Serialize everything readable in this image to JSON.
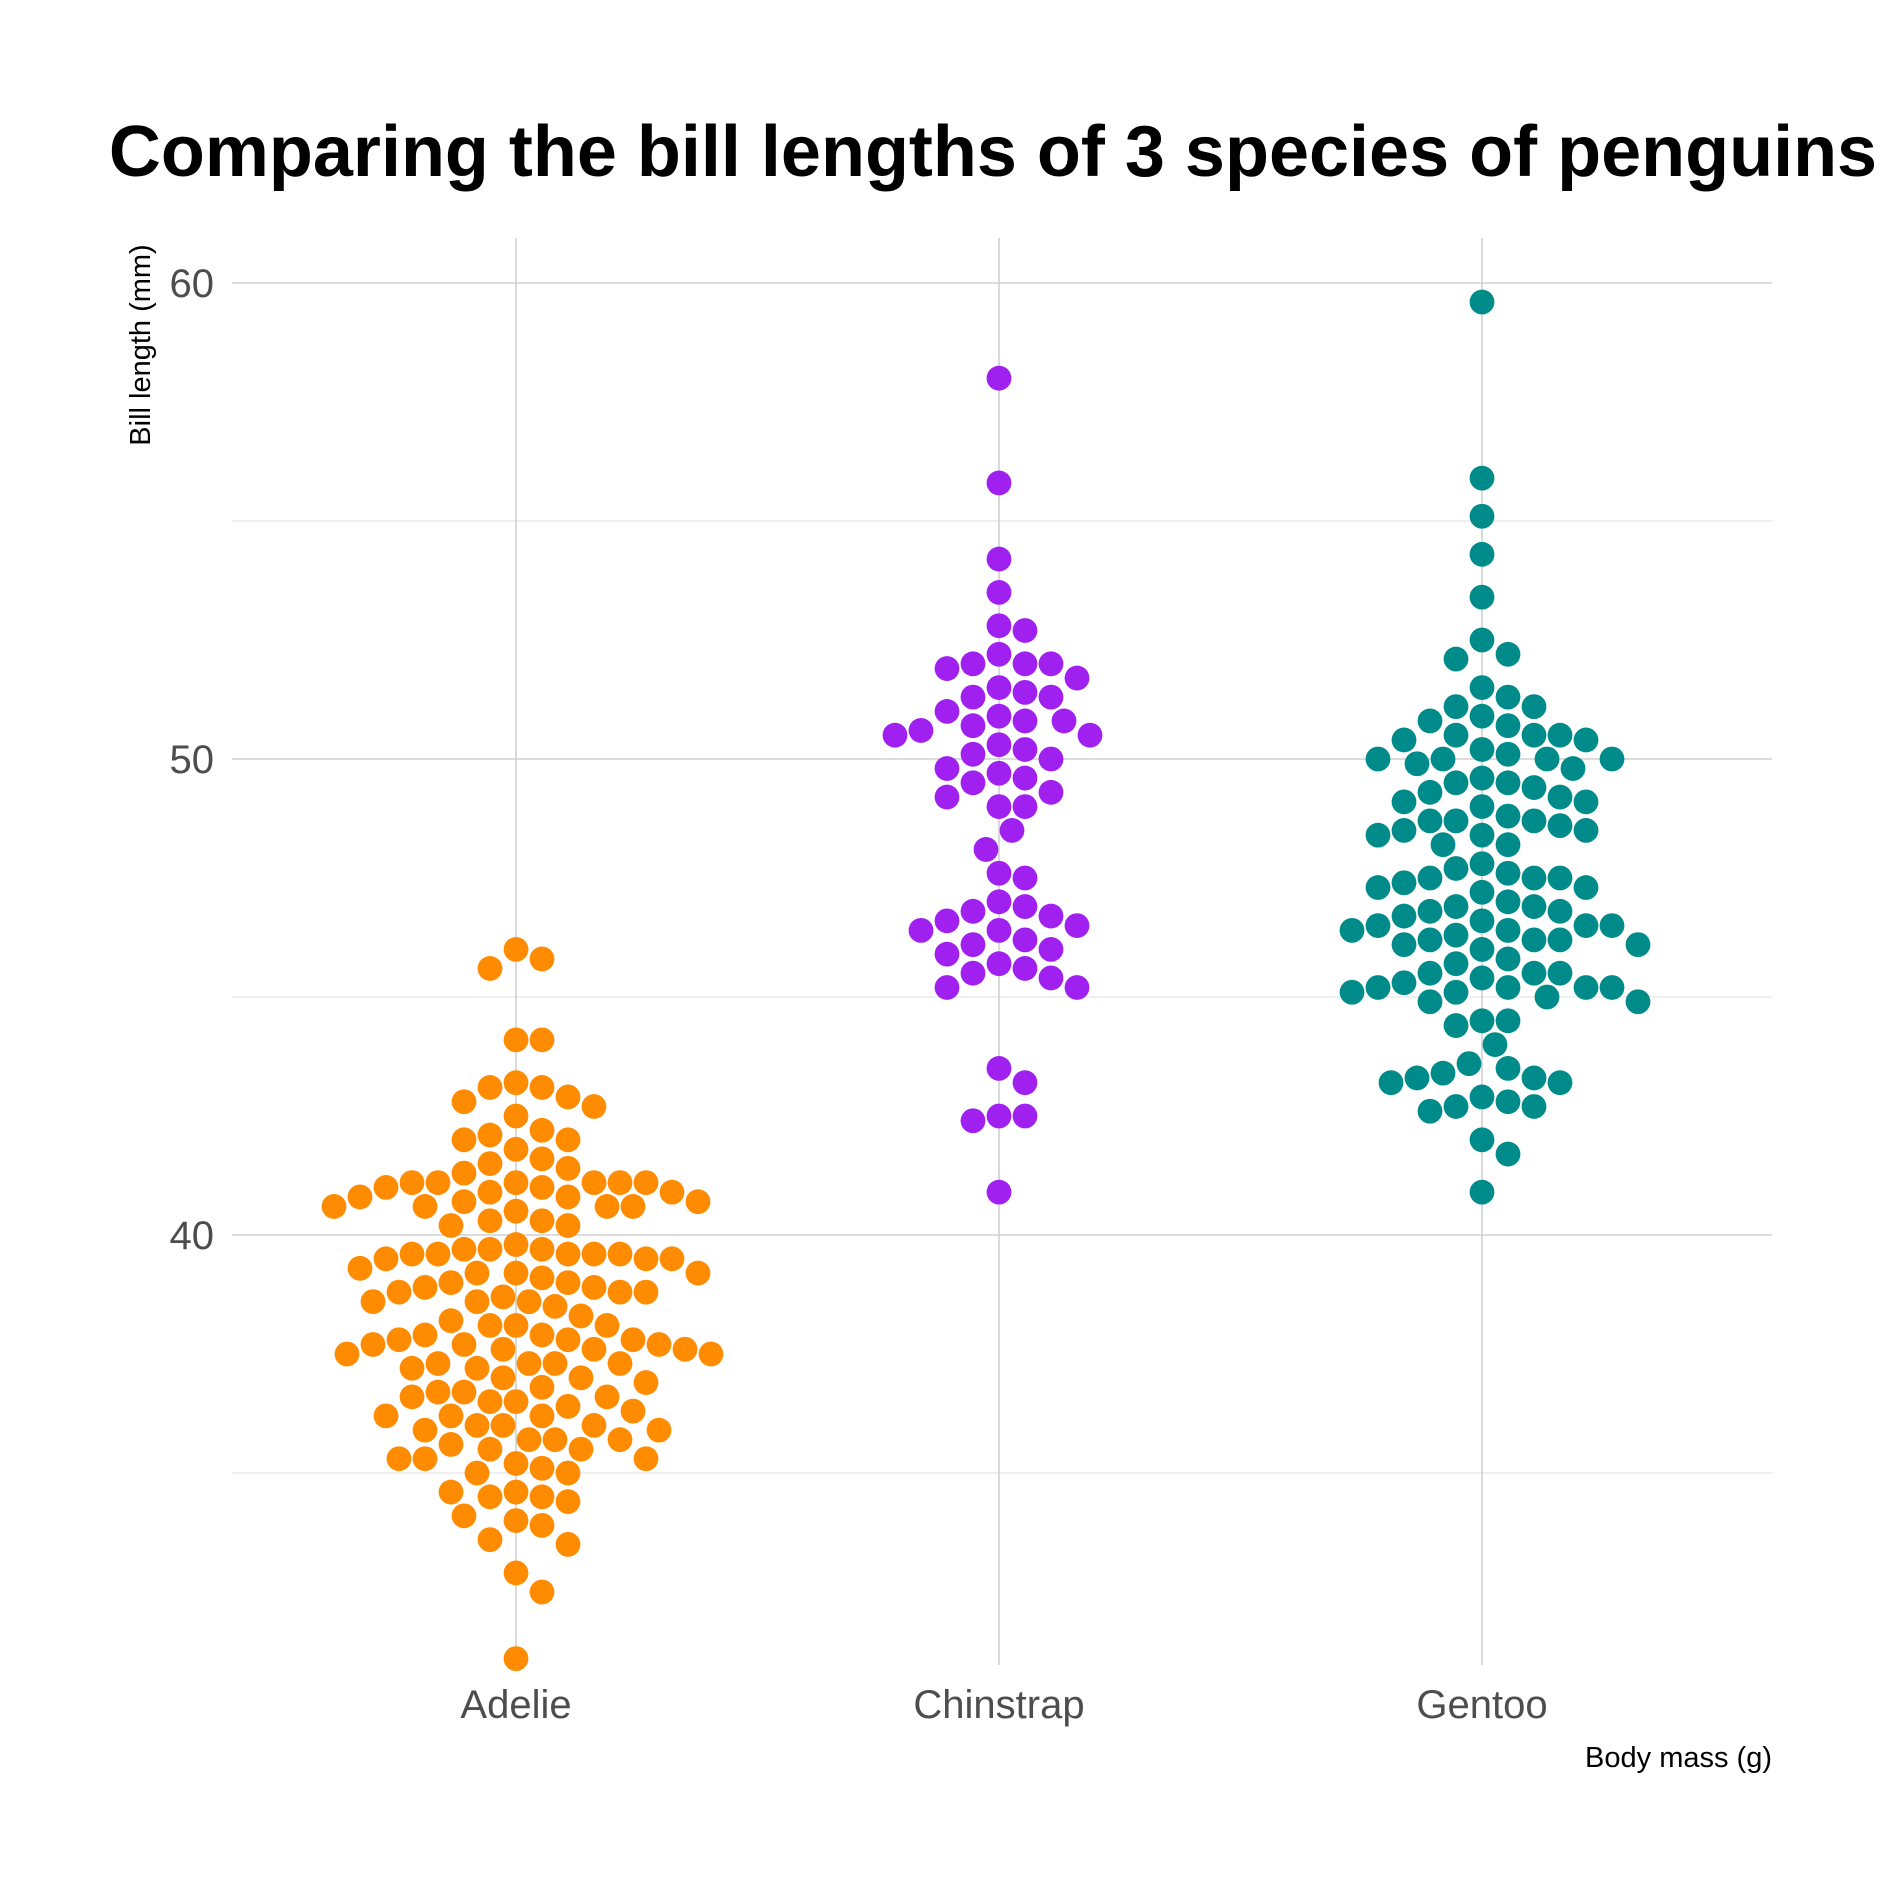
{
  "chart_data": {
    "type": "scatter",
    "subtype": "beeswarm",
    "title": "Comparing the bill lengths of 3 species of penguins",
    "xlabel": "Body mass (g)",
    "ylabel": "Bill length (mm)",
    "ylim": [
      31,
      61
    ],
    "y_ticks": [
      40,
      50,
      60
    ],
    "y_minor": [
      35,
      45,
      55
    ],
    "categories": [
      "Adelie",
      "Chinstrap",
      "Gentoo"
    ],
    "grid": true,
    "legend": "none",
    "series": [
      {
        "category": "Adelie",
        "color": "#ff8c00",
        "values": [
          46.0,
          45.8,
          45.6,
          44.1,
          44.1,
          43.2,
          43.1,
          43.1,
          42.9,
          42.8,
          42.7,
          42.5,
          42.2,
          42.1,
          42.0,
          42.0,
          41.8,
          41.6,
          41.5,
          41.4,
          41.3,
          41.1,
          41.1,
          41.1,
          41.1,
          41.1,
          41.1,
          41.0,
          41.0,
          40.9,
          40.9,
          40.8,
          40.8,
          40.7,
          40.7,
          40.6,
          40.6,
          40.6,
          40.6,
          40.5,
          40.3,
          40.3,
          40.2,
          40.2,
          39.8,
          39.7,
          39.7,
          39.7,
          39.6,
          39.6,
          39.6,
          39.6,
          39.6,
          39.5,
          39.5,
          39.5,
          39.3,
          39.2,
          39.2,
          39.2,
          39.1,
          39.0,
          39.0,
          38.9,
          38.9,
          38.8,
          38.8,
          38.8,
          38.7,
          38.6,
          38.6,
          38.6,
          38.5,
          38.3,
          38.2,
          38.1,
          38.1,
          38.1,
          37.9,
          37.9,
          37.8,
          37.8,
          37.8,
          37.7,
          37.7,
          37.7,
          37.6,
          37.6,
          37.6,
          37.5,
          37.5,
          37.3,
          37.3,
          37.3,
          37.3,
          37.2,
          37.2,
          37.0,
          37.0,
          36.9,
          36.8,
          36.7,
          36.7,
          36.6,
          36.6,
          36.5,
          36.5,
          36.4,
          36.3,
          36.2,
          36.2,
          36.2,
          36.0,
          36.0,
          36.0,
          35.9,
          35.9,
          35.7,
          35.7,
          35.7,
          35.6,
          35.5,
          35.5,
          35.3,
          35.3,
          35.3,
          35.2,
          35.1,
          35.0,
          35.0,
          34.6,
          34.6,
          34.5,
          34.5,
          34.4,
          34.1,
          34.0,
          33.9,
          33.6,
          33.5,
          32.9,
          32.5,
          31.1
        ]
      },
      {
        "category": "Chinstrap",
        "color": "#a020f0",
        "values": [
          58.0,
          55.8,
          54.2,
          53.5,
          52.8,
          52.7,
          52.2,
          52.0,
          52.0,
          52.0,
          51.9,
          51.7,
          51.5,
          51.4,
          51.3,
          51.3,
          51.0,
          50.9,
          50.8,
          50.8,
          50.7,
          50.6,
          50.5,
          50.5,
          50.3,
          50.2,
          50.1,
          50.0,
          49.8,
          49.7,
          49.6,
          49.5,
          49.3,
          49.2,
          49.0,
          49.0,
          48.5,
          48.1,
          47.6,
          47.5,
          47.0,
          46.9,
          46.8,
          46.7,
          46.6,
          46.5,
          46.4,
          46.4,
          46.2,
          46.1,
          46.0,
          45.9,
          45.7,
          45.6,
          45.5,
          45.4,
          45.2,
          45.2,
          43.5,
          43.2,
          42.5,
          42.5,
          42.4,
          40.9
        ]
      },
      {
        "category": "Gentoo",
        "color": "#008b8b",
        "values": [
          59.6,
          55.9,
          55.1,
          54.3,
          53.4,
          52.5,
          52.2,
          52.1,
          51.5,
          51.3,
          51.1,
          51.1,
          50.9,
          50.8,
          50.7,
          50.5,
          50.5,
          50.5,
          50.4,
          50.4,
          50.2,
          50.1,
          50.0,
          50.0,
          50.0,
          50.0,
          49.9,
          49.8,
          49.6,
          49.5,
          49.5,
          49.4,
          49.3,
          49.2,
          49.1,
          49.1,
          49.0,
          48.8,
          48.7,
          48.7,
          48.7,
          48.6,
          48.5,
          48.5,
          48.4,
          48.4,
          48.2,
          48.2,
          47.8,
          47.7,
          47.6,
          47.5,
          47.5,
          47.5,
          47.4,
          47.3,
          47.3,
          47.2,
          47.0,
          46.9,
          46.9,
          46.8,
          46.8,
          46.7,
          46.6,
          46.5,
          46.5,
          46.5,
          46.4,
          46.4,
          46.3,
          46.2,
          46.2,
          46.2,
          46.1,
          46.1,
          46.0,
          45.8,
          45.7,
          45.5,
          45.5,
          45.5,
          45.4,
          45.3,
          45.2,
          45.2,
          45.2,
          45.2,
          45.1,
          45.1,
          45.0,
          44.9,
          44.9,
          44.5,
          44.5,
          44.4,
          44.0,
          43.6,
          43.5,
          43.4,
          43.3,
          43.3,
          43.2,
          43.2,
          42.9,
          42.8,
          42.7,
          42.7,
          42.6,
          42.0,
          41.7,
          40.9
        ]
      }
    ]
  }
}
